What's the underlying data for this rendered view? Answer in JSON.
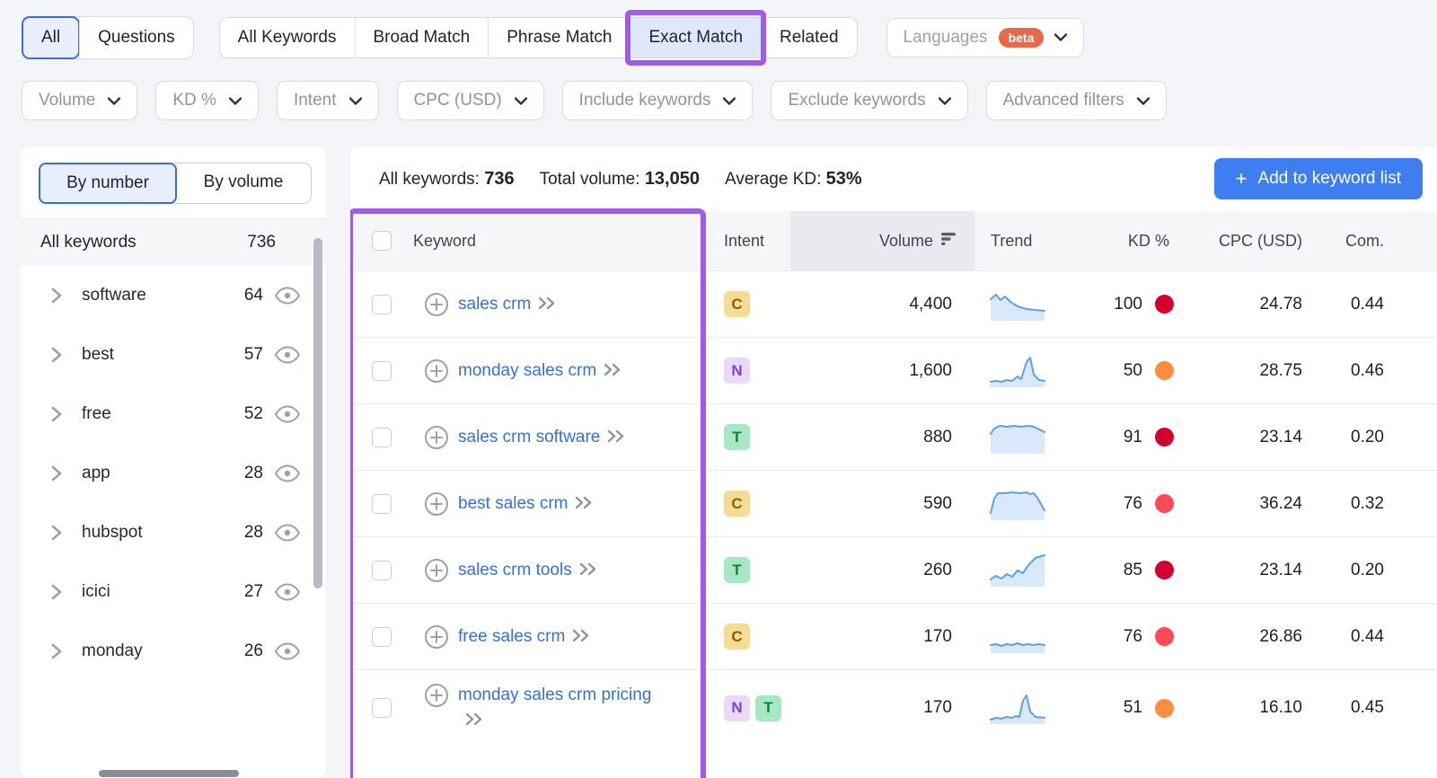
{
  "toolbar": {
    "group1": [
      {
        "label": "All",
        "selected": true
      },
      {
        "label": "Questions",
        "selected": false
      }
    ],
    "group2": [
      {
        "label": "All Keywords",
        "highlighted": false
      },
      {
        "label": "Broad Match",
        "highlighted": false
      },
      {
        "label": "Phrase Match",
        "highlighted": false
      },
      {
        "label": "Exact Match",
        "highlighted": true
      },
      {
        "label": "Related",
        "highlighted": false
      }
    ],
    "languages": {
      "label": "Languages",
      "badge": "beta"
    },
    "filters": [
      {
        "label": "Volume"
      },
      {
        "label": "KD %"
      },
      {
        "label": "Intent"
      },
      {
        "label": "CPC (USD)"
      },
      {
        "label": "Include keywords"
      },
      {
        "label": "Exclude keywords"
      },
      {
        "label": "Advanced filters"
      }
    ]
  },
  "sidebar": {
    "toggle": [
      {
        "label": "By number",
        "selected": true
      },
      {
        "label": "By volume",
        "selected": false
      }
    ],
    "header": {
      "label": "All keywords",
      "count": "736"
    },
    "groups": [
      {
        "label": "software",
        "count": "64"
      },
      {
        "label": "best",
        "count": "57"
      },
      {
        "label": "free",
        "count": "52"
      },
      {
        "label": "app",
        "count": "28"
      },
      {
        "label": "hubspot",
        "count": "28"
      },
      {
        "label": "icici",
        "count": "27"
      },
      {
        "label": "monday",
        "count": "26"
      }
    ]
  },
  "main": {
    "stats": [
      {
        "label": "All keywords:",
        "value": "736"
      },
      {
        "label": "Total volume:",
        "value": "13,050"
      },
      {
        "label": "Average KD:",
        "value": "53%"
      }
    ],
    "add_button": {
      "plus": "+",
      "label": "Add to keyword list"
    },
    "table": {
      "columns": {
        "keyword": "Keyword",
        "intent": "Intent",
        "volume": "Volume",
        "trend": "Trend",
        "kd": "KD %",
        "cpc": "CPC (USD)",
        "com": "Com."
      },
      "rows": [
        {
          "keyword": "sales crm",
          "intents": [
            "C"
          ],
          "volume": "4,400",
          "trend": "declining",
          "kd": 100,
          "cpc": "24.78",
          "com": "0.44"
        },
        {
          "keyword": "monday sales crm",
          "intents": [
            "N"
          ],
          "volume": "1,600",
          "trend": "spike-late",
          "kd": 50,
          "cpc": "28.75",
          "com": "0.46"
        },
        {
          "keyword": "sales crm software",
          "intents": [
            "T"
          ],
          "volume": "880",
          "trend": "plateau-high",
          "kd": 91,
          "cpc": "23.14",
          "com": "0.20"
        },
        {
          "keyword": "best sales crm",
          "intents": [
            "C"
          ],
          "volume": "590",
          "trend": "trapezoid",
          "kd": 76,
          "cpc": "36.24",
          "com": "0.32"
        },
        {
          "keyword": "sales crm tools",
          "intents": [
            "T"
          ],
          "volume": "260",
          "trend": "rising-jagged",
          "kd": 85,
          "cpc": "23.14",
          "com": "0.20"
        },
        {
          "keyword": "free sales crm",
          "intents": [
            "C"
          ],
          "volume": "170",
          "trend": "flat-wavy",
          "kd": 76,
          "cpc": "26.86",
          "com": "0.44"
        },
        {
          "keyword": "monday sales crm pricing",
          "intents": [
            "N",
            "T"
          ],
          "volume": "170",
          "trend": "spike-late-2",
          "kd": 51,
          "cpc": "16.10",
          "com": "0.45"
        }
      ]
    }
  },
  "colors": {
    "accent_blue": "#3e7ef0",
    "selected_tab_border": "#3a6fd8",
    "selected_tab_bg": "#e8eefc",
    "annotation_purple": "#a05ce8",
    "beta_badge": "#e8684a",
    "link_blue": "#3570d8",
    "kd_red": "#d1002f",
    "kd_light_red": "#ff4953",
    "kd_orange": "#ff8c43",
    "intent_c_bg": "#f5dc96",
    "intent_c_text": "#8a5d0b",
    "intent_n_bg": "#e9daf9",
    "intent_n_text": "#7d41da",
    "intent_t_bg": "#a7e7c3",
    "intent_t_text": "#0e7d4f",
    "trend_line": "#5ea0e0",
    "trend_fill": "#d9e9fb"
  }
}
